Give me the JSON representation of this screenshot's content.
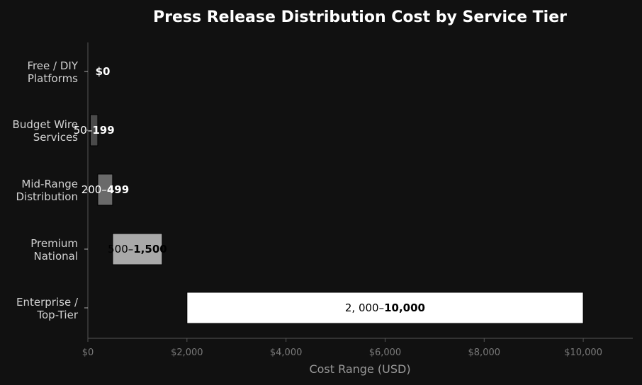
{
  "chart_data": {
    "type": "bar",
    "orientation": "horizontal",
    "title": "Press Release Distribution Cost by Service Tier",
    "xlabel": "Cost Range (USD)",
    "ylabel": "",
    "xlim": [
      0,
      11000
    ],
    "xticks": [
      0,
      2000,
      4000,
      6000,
      8000,
      10000
    ],
    "xtick_labels": [
      "$0",
      "$2,000",
      "$4,000",
      "$6,000",
      "$8,000",
      "$10,000"
    ],
    "categories": [
      [
        "Free / DIY",
        "Platforms"
      ],
      [
        "Budget Wire",
        "Services"
      ],
      [
        "Mid-Range",
        "Distribution"
      ],
      [
        "Premium",
        "National"
      ],
      [
        "Enterprise /",
        "Top-Tier"
      ]
    ],
    "ranges": [
      {
        "low": 0,
        "high": 0,
        "color": "#111111",
        "label_parts": [
          {
            "text": "$0",
            "bold": true
          }
        ],
        "label_color": "#ffffff"
      },
      {
        "low": 50,
        "high": 199,
        "color": "#4a4a4a",
        "label_parts": [
          {
            "text": "50–",
            "bold": false
          },
          {
            "text": "199",
            "bold": true
          }
        ],
        "label_color": "#ffffff"
      },
      {
        "low": 200,
        "high": 499,
        "color": "#6a6a6a",
        "label_parts": [
          {
            "text": "200–",
            "bold": false
          },
          {
            "text": "499",
            "bold": true
          }
        ],
        "label_color": "#ffffff"
      },
      {
        "low": 500,
        "high": 1500,
        "color": "#a9a9a9",
        "label_parts": [
          {
            "text": "500–",
            "bold": false
          },
          {
            "text": "1,500",
            "bold": true
          }
        ],
        "label_color": "#000000"
      },
      {
        "low": 2000,
        "high": 10000,
        "color": "#ffffff",
        "label_parts": [
          {
            "text": "2, 000–",
            "bold": false
          },
          {
            "text": "10,000",
            "bold": true
          }
        ],
        "label_color": "#000000"
      }
    ],
    "grid": false,
    "legend": "none",
    "colors": {
      "background": "#111111",
      "axis": "#555555"
    }
  }
}
